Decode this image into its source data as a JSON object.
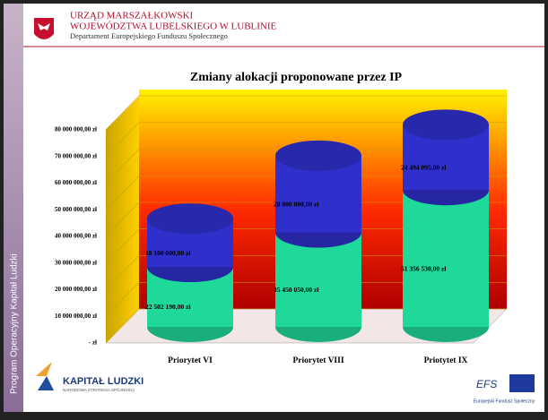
{
  "header": {
    "line1": "URZĄD MARSZAŁKOWSKI",
    "line2": "WOJEWÓDZTWA LUBELSKIEGO W LUBLINIE",
    "line3": "Departament Europejskiego Funduszu Społecznego"
  },
  "sidebar": "Program Operacyjny Kapitał Ludzki",
  "footer": {
    "kl_title": "KAPITAŁ LUDZKI",
    "kl_sub": "NARODOWA STRATEGIA SPÓJNOŚCI",
    "efs": "EFS",
    "efs_sub": "Europejski Fundusz Społeczny"
  },
  "chart_data": {
    "type": "bar",
    "stacked": true,
    "title": "Zmiany alokacji proponowane przez IP",
    "categories": [
      "Priorytet VI",
      "Priorytet VIII",
      "Priotytet IX"
    ],
    "series": [
      {
        "color": "#1fd99a",
        "values": [
          22502190,
          35450050,
          51356530
        ],
        "value_labels": [
          "22 502 190,00 zł",
          "35 450 050,00 zł",
          "51 356 530,00 zł"
        ]
      },
      {
        "color": "#2f2fcc",
        "values": [
          18100000,
          28800000,
          24494095
        ],
        "value_labels": [
          "18 100 000,00 zł",
          "28 800 000,00 zł",
          "24 494 095,00 zł"
        ]
      }
    ],
    "ylim": [
      0,
      80000000
    ],
    "yticks": [
      {
        "value": 0,
        "label": "- zł"
      },
      {
        "value": 10000000,
        "label": "10 000 000,00 zł"
      },
      {
        "value": 20000000,
        "label": "20 000 000,00 zł"
      },
      {
        "value": 30000000,
        "label": "30 000 000,00 zł"
      },
      {
        "value": 40000000,
        "label": "40 000 000,00 zł"
      },
      {
        "value": 50000000,
        "label": "50 000 000,00 zł"
      },
      {
        "value": 60000000,
        "label": "60 000 000,00 zł"
      },
      {
        "value": 70000000,
        "label": "70 000 000,00 zł"
      },
      {
        "value": 80000000,
        "label": "80 000 000,00 zł"
      }
    ],
    "grid": true
  }
}
